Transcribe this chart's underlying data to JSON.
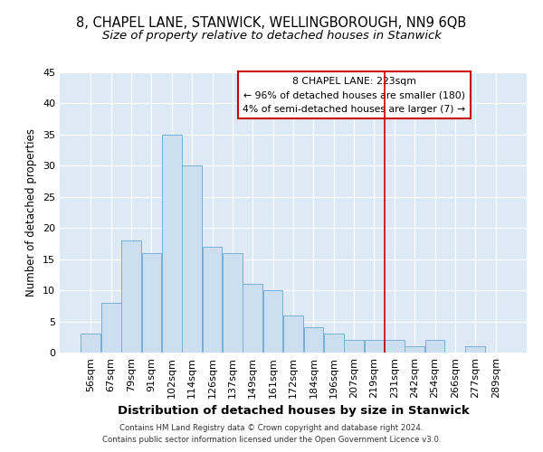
{
  "title1": "8, CHAPEL LANE, STANWICK, WELLINGBOROUGH, NN9 6QB",
  "title2": "Size of property relative to detached houses in Stanwick",
  "xlabel": "Distribution of detached houses by size in Stanwick",
  "ylabel": "Number of detached properties",
  "bar_labels": [
    "56sqm",
    "67sqm",
    "79sqm",
    "91sqm",
    "102sqm",
    "114sqm",
    "126sqm",
    "137sqm",
    "149sqm",
    "161sqm",
    "172sqm",
    "184sqm",
    "196sqm",
    "207sqm",
    "219sqm",
    "231sqm",
    "242sqm",
    "254sqm",
    "266sqm",
    "277sqm",
    "289sqm"
  ],
  "bar_values": [
    3,
    8,
    18,
    16,
    35,
    30,
    17,
    16,
    11,
    10,
    6,
    4,
    3,
    2,
    2,
    2,
    1,
    2,
    0,
    1,
    0
  ],
  "bar_color": "#ccdff0",
  "bar_edge_color": "#7ab0d4",
  "vline_x": 14.5,
  "vline_color": "#cc0000",
  "annotation_title": "8 CHAPEL LANE: 223sqm",
  "annotation_line1": "← 96% of detached houses are smaller (180)",
  "annotation_line2": "4% of semi-detached houses are larger (7) →",
  "annotation_box_color": "#cc0000",
  "ylim": [
    0,
    45
  ],
  "yticks": [
    0,
    5,
    10,
    15,
    20,
    25,
    30,
    35,
    40,
    45
  ],
  "footer1": "Contains HM Land Registry data © Crown copyright and database right 2024.",
  "footer2": "Contains public sector information licensed under the Open Government Licence v3.0.",
  "bg_color": "#ddeaf5",
  "title1_fontsize": 10.5,
  "title2_fontsize": 9.5,
  "xlabel_fontsize": 9.5,
  "ylabel_fontsize": 8.5,
  "tick_fontsize": 8,
  "ann_fontsize": 7.8,
  "footer_fontsize": 6.2
}
